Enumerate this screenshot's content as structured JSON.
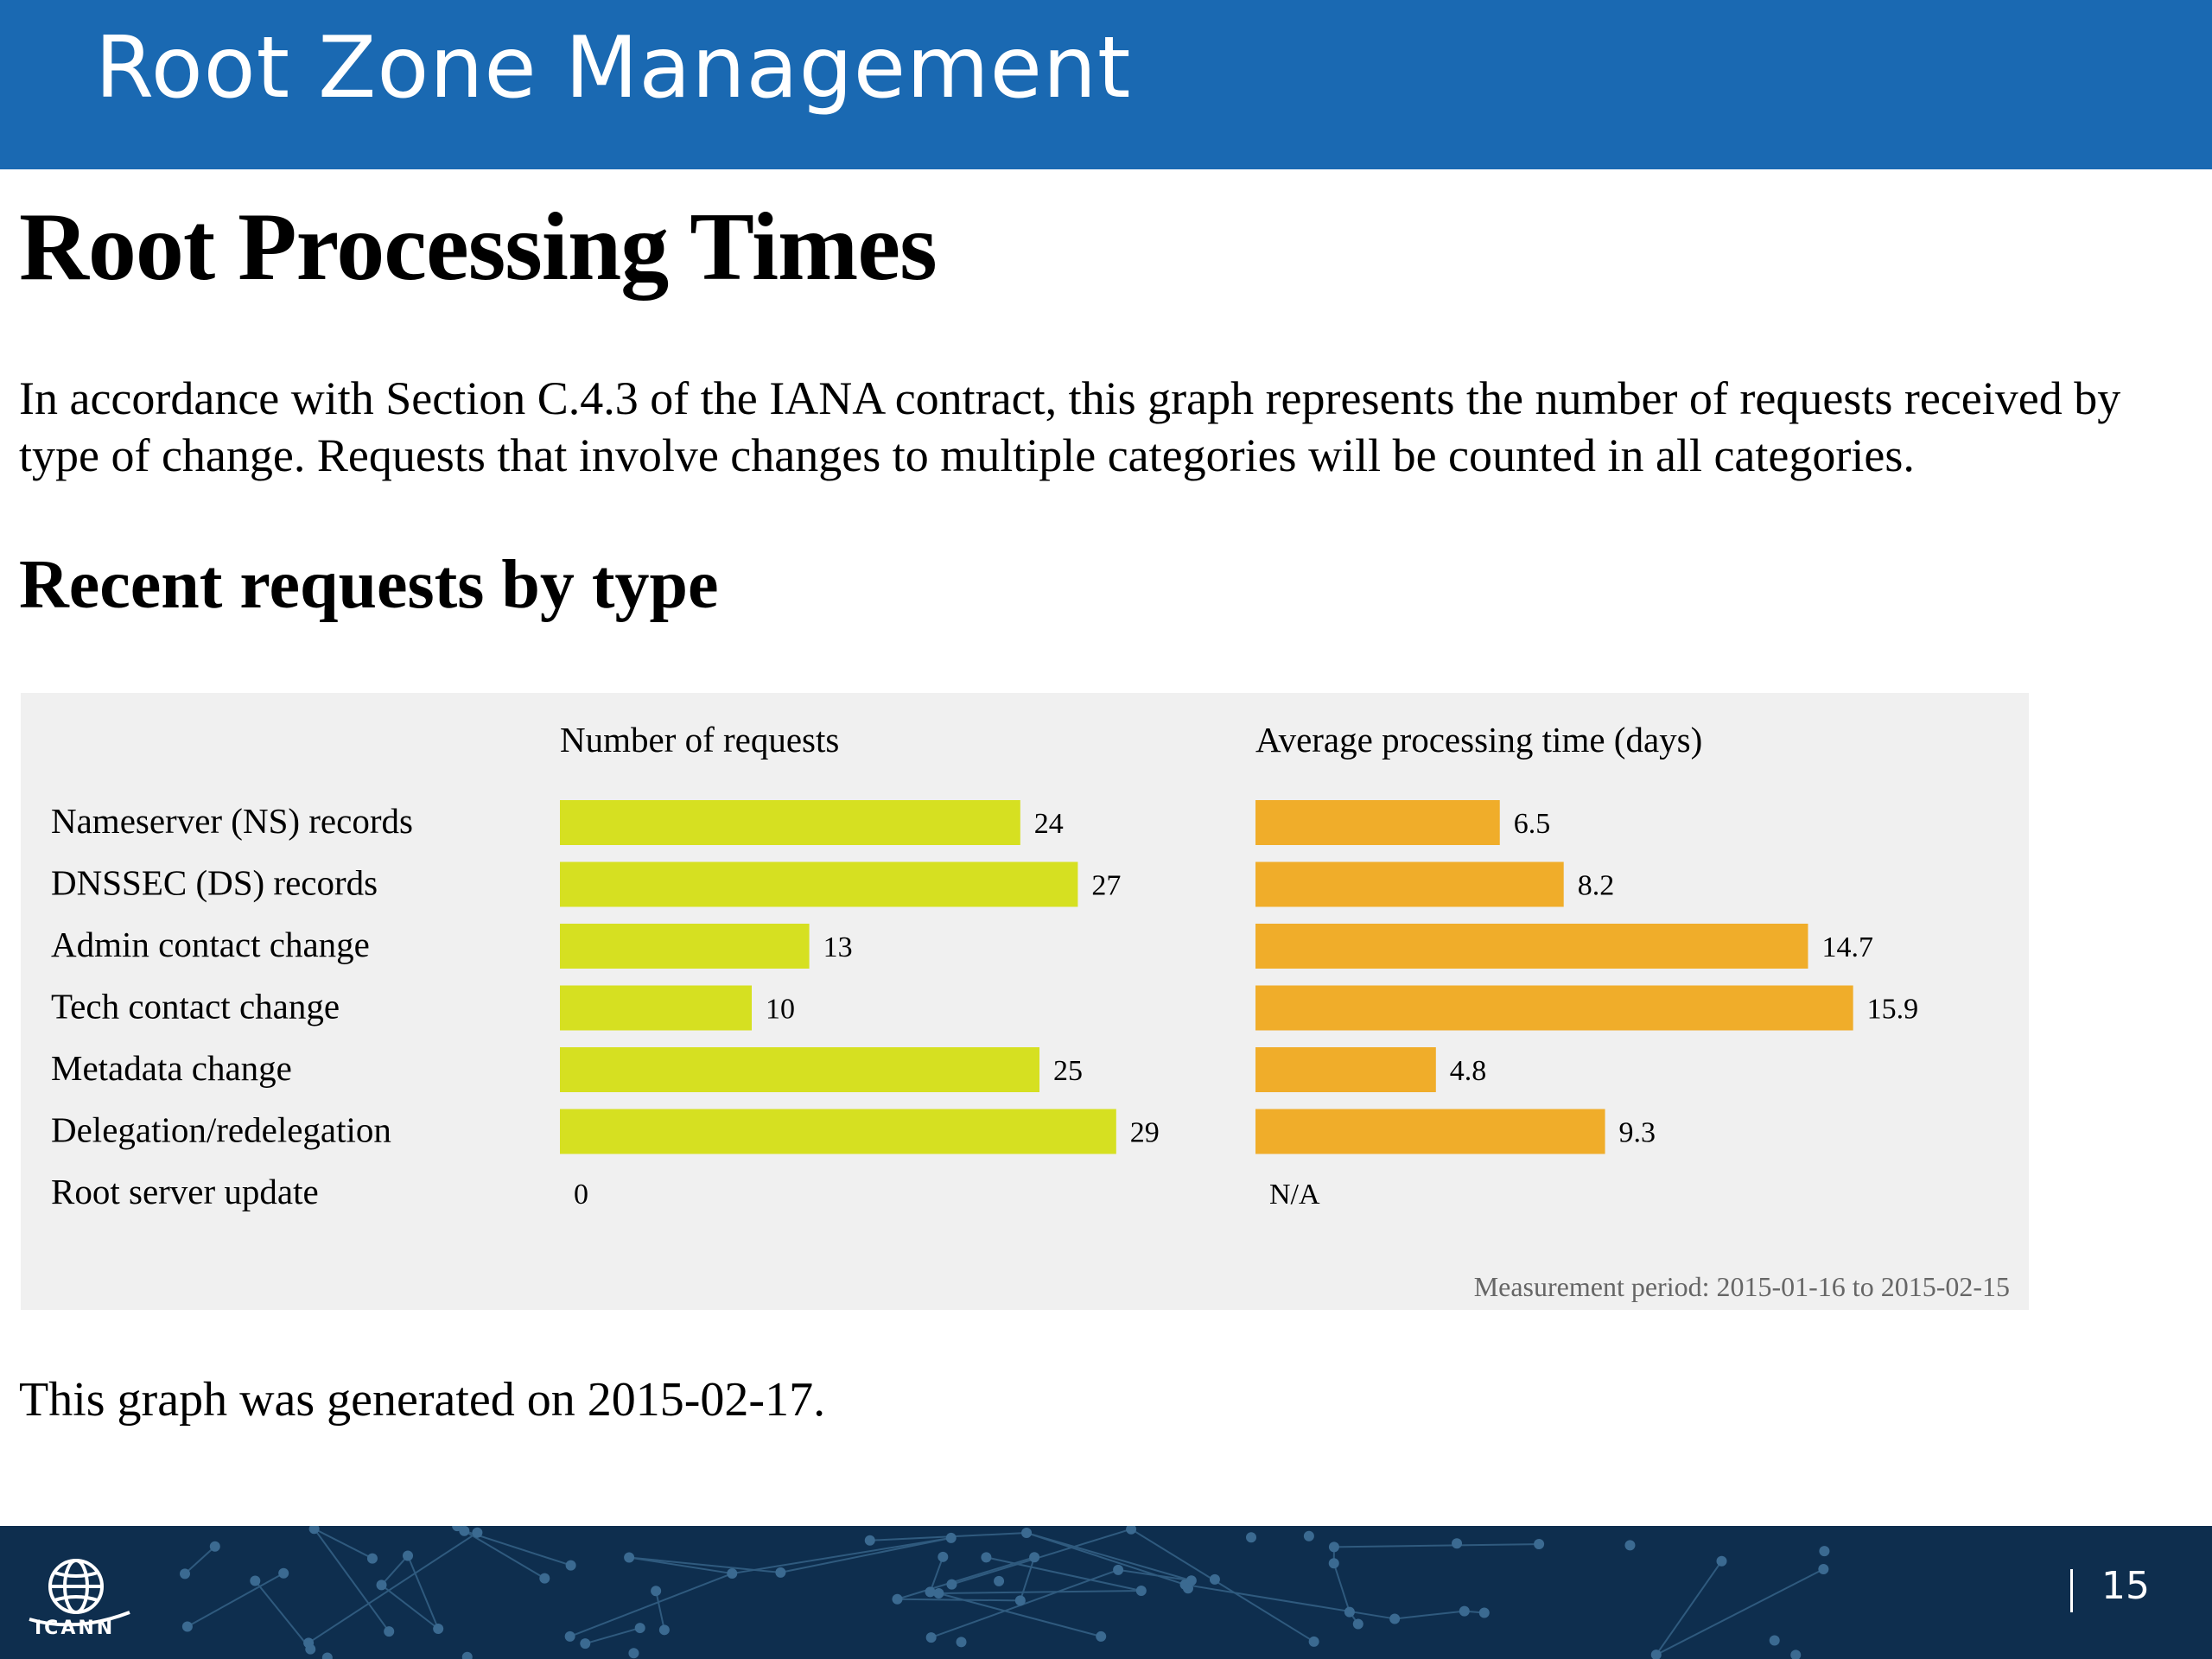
{
  "header": {
    "title": "Root Zone Management"
  },
  "page_title": "Root Processing Times",
  "intro": "In accordance with Section C.4.3 of the IANA contract, this graph represents the number of requests received by type of change. Requests that involve changes to multiple categories will be counted in all categories.",
  "section_title": "Recent requests by type",
  "chart": {
    "left_heading": "Number of requests",
    "right_heading": "Average processing time (days)",
    "measurement": "Measurement period: 2015-01-16 to 2015-02-15",
    "colors": {
      "requests": "#d6e021",
      "time": "#f0ad2a"
    }
  },
  "chart_data": [
    {
      "type": "bar",
      "orientation": "horizontal",
      "title": "Number of requests",
      "categories": [
        "Nameserver (NS) records",
        "DNSSEC (DS) records",
        "Admin contact change",
        "Tech contact change",
        "Metadata change",
        "Delegation/redelegation",
        "Root server update"
      ],
      "values": [
        24,
        27,
        13,
        10,
        25,
        29,
        0
      ],
      "value_labels": [
        "24",
        "27",
        "13",
        "10",
        "25",
        "29",
        "0"
      ]
    },
    {
      "type": "bar",
      "orientation": "horizontal",
      "title": "Average processing time (days)",
      "categories": [
        "Nameserver (NS) records",
        "DNSSEC (DS) records",
        "Admin contact change",
        "Tech contact change",
        "Metadata change",
        "Delegation/redelegation",
        "Root server update"
      ],
      "values": [
        6.5,
        8.2,
        14.7,
        15.9,
        4.8,
        9.3,
        null
      ],
      "value_labels": [
        "6.5",
        "8.2",
        "14.7",
        "15.9",
        "4.8",
        "9.3",
        "N/A"
      ]
    }
  ],
  "generated": "This graph was generated on 2015-02-17.",
  "footer": {
    "logo_text": "ICANN",
    "slide_number": "15"
  }
}
